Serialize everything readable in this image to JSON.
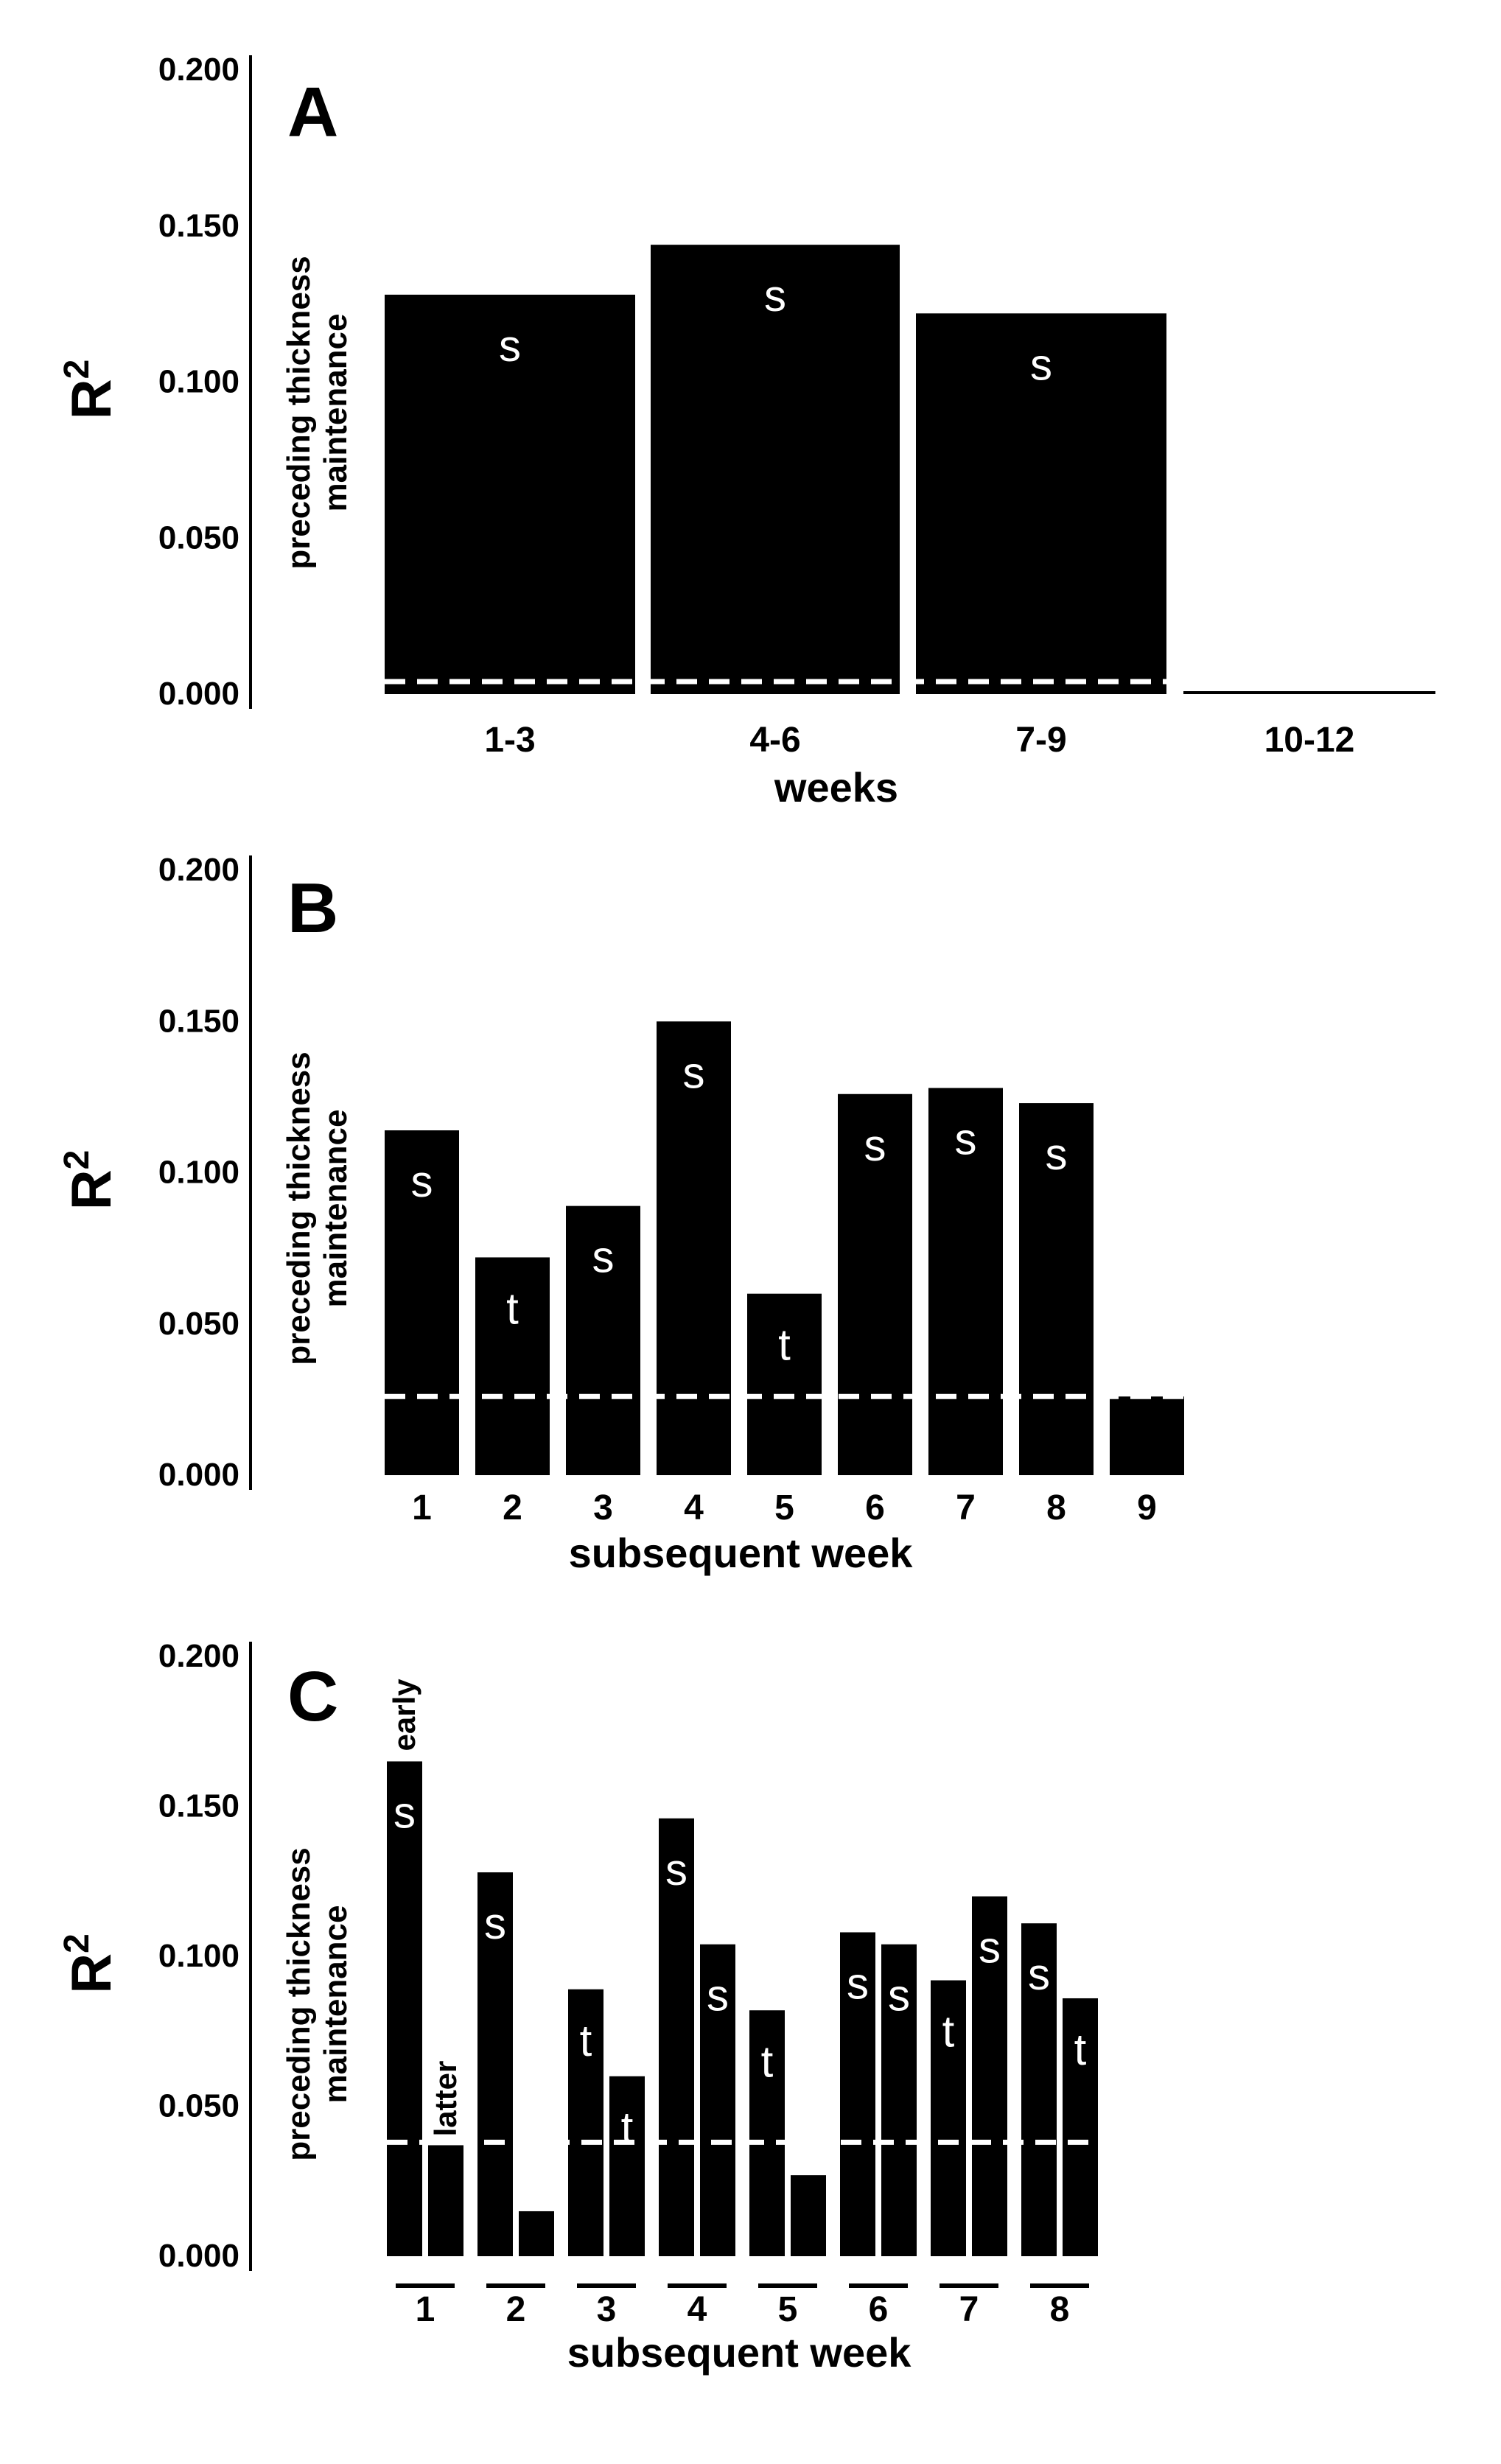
{
  "figure": {
    "background": "#ffffff",
    "bar_color": "#000000",
    "threshold_color": "#ffffff",
    "text_color": "#000000",
    "bar_label_color": "#ffffff"
  },
  "chart_data": [
    {
      "panel": "A",
      "type": "bar",
      "ylabel_base": "R",
      "ylabel_sup": "2",
      "inner_label_lines": [
        "preceding thickness",
        "maintenance"
      ],
      "xlabel": "weeks",
      "ylim": [
        0,
        0.2
      ],
      "yticks": [
        "0.000",
        "0.050",
        "0.100",
        "0.150",
        "0.200"
      ],
      "categories": [
        "1-3",
        "4-6",
        "7-9",
        "10-12"
      ],
      "values": [
        0.128,
        0.144,
        0.122,
        0.0
      ],
      "labels": [
        "s",
        "s",
        "s",
        ""
      ],
      "threshold": 0.004
    },
    {
      "panel": "B",
      "type": "bar",
      "ylabel_base": "R",
      "ylabel_sup": "2",
      "inner_label_lines": [
        "preceding thickness",
        "maintenance"
      ],
      "xlabel": "subsequent week",
      "ylim": [
        0,
        0.2
      ],
      "yticks": [
        "0.000",
        "0.050",
        "0.100",
        "0.150",
        "0.200"
      ],
      "categories": [
        "1",
        "2",
        "3",
        "4",
        "5",
        "6",
        "7",
        "8",
        "9"
      ],
      "values": [
        0.114,
        0.072,
        0.089,
        0.15,
        0.06,
        0.126,
        0.128,
        0.123,
        0.026
      ],
      "labels": [
        "s",
        "t",
        "s",
        "s",
        "t",
        "s",
        "s",
        "s",
        ""
      ],
      "threshold": 0.026
    },
    {
      "panel": "C",
      "type": "bar",
      "ylabel_base": "R",
      "ylabel_sup": "2",
      "inner_label_lines": [
        "preceding thickness",
        "maintenance"
      ],
      "xlabel": "subsequent week",
      "ylim": [
        0,
        0.2
      ],
      "yticks": [
        "0.000",
        "0.050",
        "0.100",
        "0.150",
        "0.200"
      ],
      "categories": [
        "1",
        "2",
        "3",
        "4",
        "5",
        "6",
        "7",
        "8"
      ],
      "series": [
        {
          "name": "early",
          "values": [
            0.165,
            0.128,
            0.089,
            0.146,
            0.082,
            0.108,
            0.092,
            0.111
          ],
          "labels": [
            "s",
            "s",
            "t",
            "s",
            "t",
            "s",
            "t",
            "s"
          ]
        },
        {
          "name": "latter",
          "values": [
            0.037,
            0.015,
            0.06,
            0.104,
            0.027,
            0.104,
            0.12,
            0.086
          ],
          "labels": [
            "",
            "",
            "t",
            "s",
            "",
            "s",
            "s",
            "t"
          ]
        }
      ],
      "annotations": [
        "early",
        "latter"
      ],
      "threshold": 0.038
    }
  ]
}
